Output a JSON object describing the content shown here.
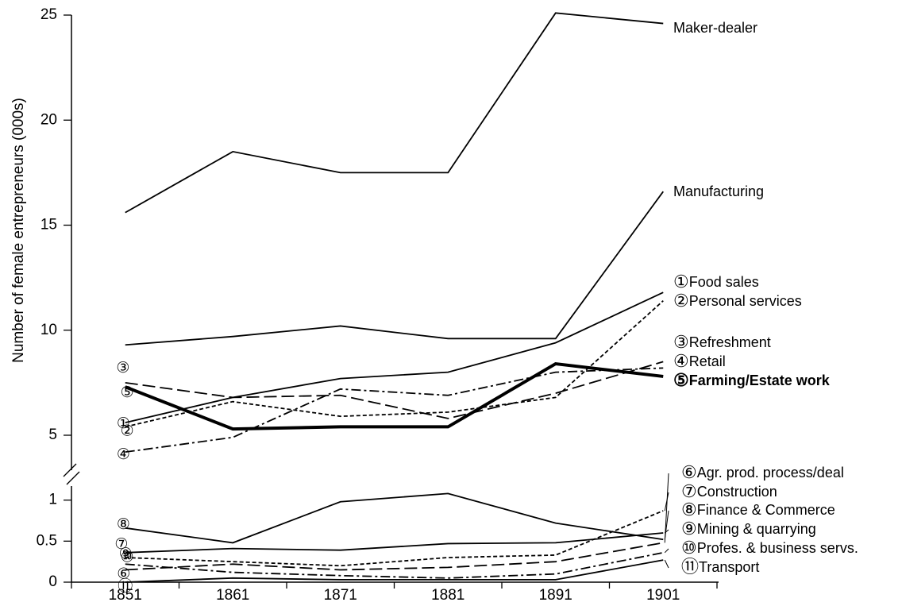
{
  "chart_data": [
    {
      "type": "line",
      "y_label": "Number of female entrepreneurs (000s)",
      "categories": [
        "1851",
        "1861",
        "1871",
        "1881",
        "1891",
        "1901"
      ],
      "ylim": [
        5,
        25
      ],
      "yticks": [
        5,
        10,
        15,
        20,
        25
      ],
      "series": [
        {
          "name": "Maker-dealer",
          "color": "#000",
          "linestyle": "solid",
          "values": [
            15.6,
            18.5,
            17.5,
            17.5,
            25.1,
            24.6
          ]
        },
        {
          "name": "Manufacturing",
          "color": "#000",
          "linestyle": "solid",
          "values": [
            9.3,
            9.7,
            10.2,
            9.6,
            9.6,
            16.6
          ]
        },
        {
          "name": "Food sales",
          "marker": "①",
          "color": "#000",
          "linestyle": "solid",
          "values": [
            5.6,
            6.8,
            7.7,
            8.0,
            9.4,
            11.8
          ]
        },
        {
          "name": "Personal services",
          "marker": "②",
          "color": "#000",
          "linestyle": "dotted",
          "values": [
            5.4,
            6.6,
            5.9,
            6.1,
            6.8,
            11.4
          ]
        },
        {
          "name": "Refreshment",
          "marker": "③",
          "color": "#000",
          "linestyle": "longdash",
          "values": [
            7.5,
            6.8,
            6.9,
            5.8,
            7.0,
            8.5
          ]
        },
        {
          "name": "Retail",
          "marker": "④",
          "color": "#000",
          "linestyle": "dashdot",
          "values": [
            4.2,
            4.9,
            7.2,
            6.9,
            8.0,
            8.2
          ]
        },
        {
          "name": "Farming/Estate work",
          "marker": "⑤",
          "color": "#000",
          "linestyle": "bold",
          "values": [
            7.3,
            5.3,
            5.4,
            5.4,
            8.4,
            7.8
          ]
        }
      ]
    },
    {
      "type": "line",
      "categories": [
        "1851",
        "1861",
        "1871",
        "1881",
        "1891",
        "1901"
      ],
      "ylim": [
        0,
        1.2
      ],
      "yticks": [
        0,
        0.5,
        1
      ],
      "series": [
        {
          "name": "Agr. prod. process/deal",
          "marker": "⑥",
          "color": "#000",
          "linestyle": "longdash",
          "values": [
            0.15,
            0.22,
            0.15,
            0.18,
            0.25,
            0.48
          ]
        },
        {
          "name": "Construction",
          "marker": "⑦",
          "color": "#000",
          "linestyle": "dotted",
          "values": [
            0.3,
            0.25,
            0.2,
            0.3,
            0.33,
            0.87
          ]
        },
        {
          "name": "Finance & Commerce",
          "marker": "⑧",
          "color": "#000",
          "linestyle": "solid",
          "values": [
            0.66,
            0.48,
            0.98,
            1.08,
            0.72,
            0.52
          ]
        },
        {
          "name": "Mining & quarrying",
          "marker": "⑨",
          "color": "#000",
          "linestyle": "solid",
          "values": [
            0.36,
            0.41,
            0.39,
            0.47,
            0.48,
            0.6
          ]
        },
        {
          "name": "Profes. & business servs.",
          "marker": "⑩",
          "color": "#000",
          "linestyle": "dashdot",
          "values": [
            0.22,
            0.12,
            0.08,
            0.05,
            0.1,
            0.36
          ]
        },
        {
          "name": "Transport",
          "marker": "⑪",
          "color": "#000",
          "linestyle": "solid",
          "values": [
            0.0,
            0.05,
            0.03,
            0.03,
            0.03,
            0.27
          ]
        }
      ]
    }
  ]
}
